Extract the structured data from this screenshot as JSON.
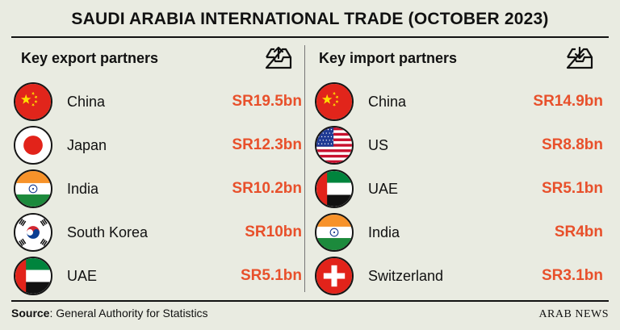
{
  "title": "SAUDI ARABIA INTERNATIONAL TRADE (OCTOBER 2023)",
  "exports": {
    "heading": "Key export partners",
    "icon": "tray-upload-icon",
    "rows": [
      {
        "country": "China",
        "value": "SR19.5bn",
        "flag": "china"
      },
      {
        "country": "Japan",
        "value": "SR12.3bn",
        "flag": "japan"
      },
      {
        "country": "India",
        "value": "SR10.2bn",
        "flag": "india"
      },
      {
        "country": "South Korea",
        "value": "SR10bn",
        "flag": "south-korea"
      },
      {
        "country": "UAE",
        "value": "SR5.1bn",
        "flag": "uae"
      }
    ]
  },
  "imports": {
    "heading": "Key import partners",
    "icon": "tray-download-icon",
    "rows": [
      {
        "country": "China",
        "value": "SR14.9bn",
        "flag": "china"
      },
      {
        "country": "US",
        "value": "SR8.8bn",
        "flag": "us"
      },
      {
        "country": "UAE",
        "value": "SR5.1bn",
        "flag": "uae"
      },
      {
        "country": "India",
        "value": "SR4bn",
        "flag": "india"
      },
      {
        "country": "Switzerland",
        "value": "SR3.1bn",
        "flag": "switzerland"
      }
    ]
  },
  "source": {
    "label": "Source",
    "text": ": General Authority for Statistics"
  },
  "brand": "ARAB NEWS",
  "colors": {
    "background": "#e9ebe1",
    "accent": "#e8502b",
    "text": "#111111"
  }
}
